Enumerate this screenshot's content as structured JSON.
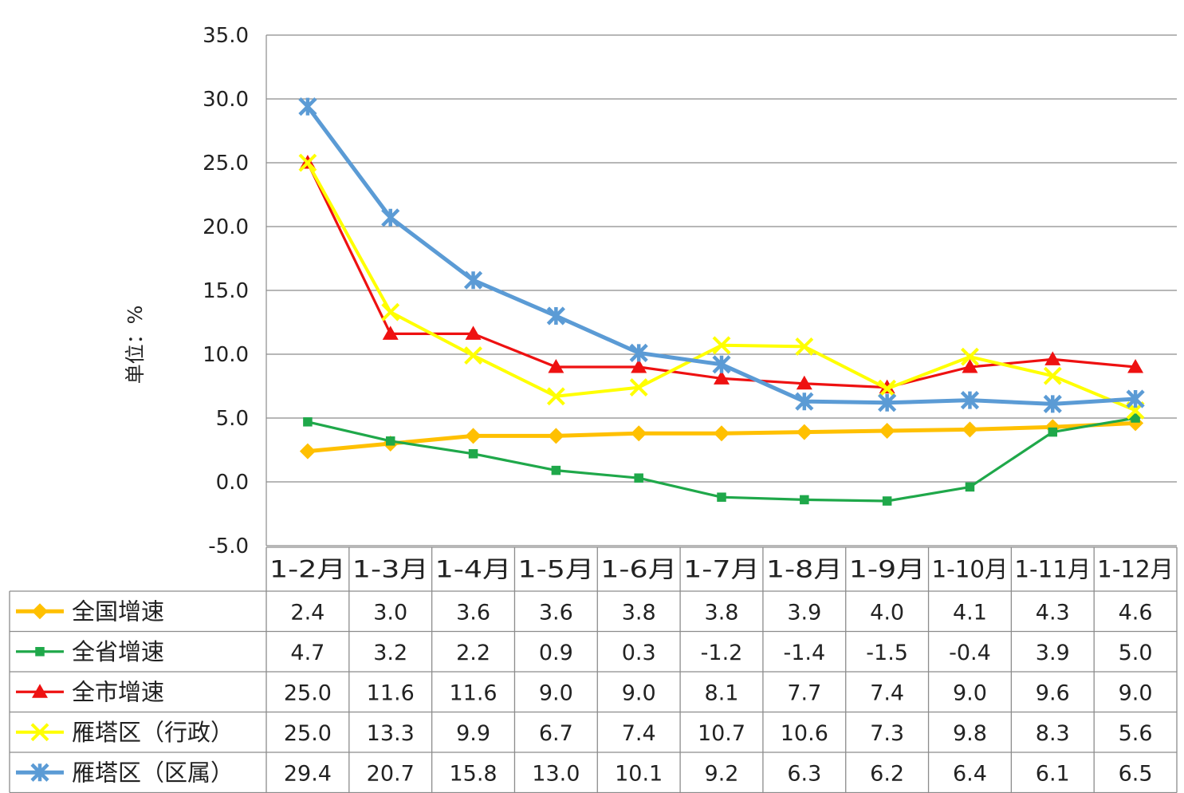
{
  "chart_data": {
    "type": "line",
    "ylabel": "单位：%",
    "ylim": [
      -5.0,
      35.0
    ],
    "ytick_step": 5.0,
    "grid": true,
    "legend": "data-table-left",
    "categories": [
      "1-2月",
      "1-3月",
      "1-4月",
      "1-5月",
      "1-6月",
      "1-7月",
      "1-8月",
      "1-9月",
      "1-10月",
      "1-11月",
      "1-12月"
    ],
    "series": [
      {
        "name": "全国增速",
        "color": "#FFC000",
        "marker": "diamond",
        "values": [
          2.4,
          3.0,
          3.6,
          3.6,
          3.8,
          3.8,
          3.9,
          4.0,
          4.1,
          4.3,
          4.6
        ]
      },
      {
        "name": "全省增速",
        "color": "#1FA84A",
        "marker": "square",
        "values": [
          4.7,
          3.2,
          2.2,
          0.9,
          0.3,
          -1.2,
          -1.4,
          -1.5,
          -0.4,
          3.9,
          5.0
        ]
      },
      {
        "name": "全市增速",
        "color": "#EE1111",
        "marker": "triangle",
        "values": [
          25.0,
          11.6,
          11.6,
          9.0,
          9.0,
          8.1,
          7.7,
          7.4,
          9.0,
          9.6,
          9.0
        ]
      },
      {
        "name": "雁塔区（行政）",
        "color": "#FFFF00",
        "marker": "x",
        "values": [
          25.0,
          13.3,
          9.9,
          6.7,
          7.4,
          10.7,
          10.6,
          7.3,
          9.8,
          8.3,
          5.6
        ]
      },
      {
        "name": "雁塔区（区属）",
        "color": "#5B9BD5",
        "marker": "star",
        "values": [
          29.4,
          20.7,
          15.8,
          13.0,
          10.1,
          9.2,
          6.3,
          6.2,
          6.4,
          6.1,
          6.5
        ]
      }
    ]
  }
}
